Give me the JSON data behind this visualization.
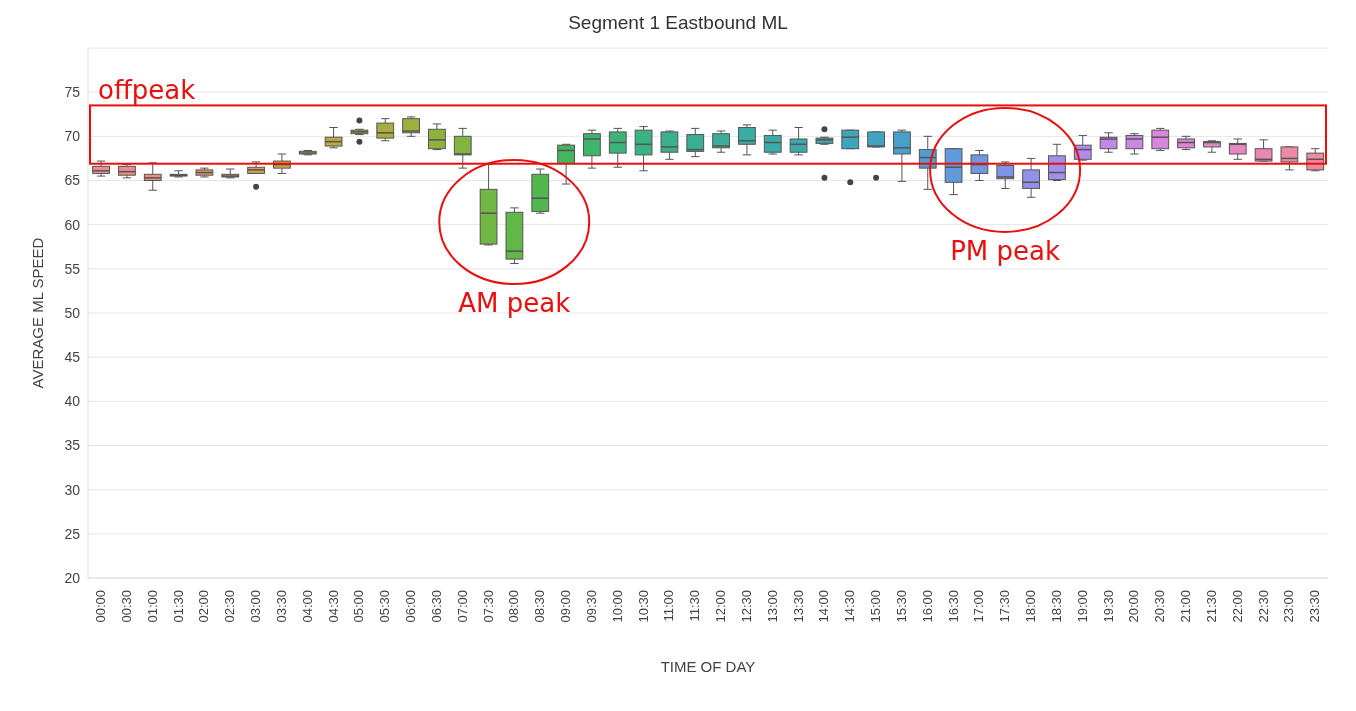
{
  "chart_data": {
    "type": "box",
    "title": "Segment 1 Eastbound ML",
    "xlabel": "TIME OF DAY",
    "ylabel": "AVERAGE ML SPEED",
    "categories": [
      "00:00",
      "00:30",
      "01:00",
      "01:30",
      "02:00",
      "02:30",
      "03:00",
      "03:30",
      "04:00",
      "04:30",
      "05:00",
      "05:30",
      "06:00",
      "06:30",
      "07:00",
      "07:30",
      "08:00",
      "08:30",
      "09:00",
      "09:30",
      "10:00",
      "10:30",
      "11:00",
      "11:30",
      "12:00",
      "12:30",
      "13:00",
      "13:30",
      "14:00",
      "14:30",
      "15:00",
      "15:30",
      "16:00",
      "16:30",
      "17:00",
      "17:30",
      "18:00",
      "18:30",
      "19:00",
      "19:30",
      "20:00",
      "20:30",
      "21:00",
      "21:30",
      "22:00",
      "22:30",
      "23:00",
      "23:30"
    ],
    "boxes": [
      {
        "low": 65.5,
        "q1": 65.8,
        "median": 66.1,
        "q3": 66.6,
        "high": 67.2
      },
      {
        "low": 65.3,
        "q1": 65.6,
        "median": 66.0,
        "q3": 66.6,
        "high": 66.8
      },
      {
        "low": 63.9,
        "q1": 65.0,
        "median": 65.3,
        "q3": 65.7,
        "high": 67.0
      },
      {
        "low": 65.4,
        "q1": 65.5,
        "median": 65.6,
        "q3": 65.7,
        "high": 66.1
      },
      {
        "low": 65.4,
        "q1": 65.6,
        "median": 65.9,
        "q3": 66.2,
        "high": 66.4
      },
      {
        "low": 65.3,
        "q1": 65.4,
        "median": 65.5,
        "q3": 65.7,
        "high": 66.3
      },
      {
        "low": 65.8,
        "q1": 65.8,
        "median": 66.2,
        "q3": 66.5,
        "high": 67.1,
        "outliers": [
          64.3
        ]
      },
      {
        "low": 65.8,
        "q1": 66.4,
        "median": 66.8,
        "q3": 67.2,
        "high": 68.0
      },
      {
        "low": 67.9,
        "q1": 68.0,
        "median": 68.1,
        "q3": 68.3,
        "high": 68.4
      },
      {
        "low": 68.7,
        "q1": 68.9,
        "median": 69.4,
        "q3": 69.9,
        "high": 71.0
      },
      {
        "low": 70.2,
        "q1": 70.3,
        "median": 70.5,
        "q3": 70.7,
        "high": 70.8,
        "outliers": [
          71.8,
          69.4
        ]
      },
      {
        "low": 69.5,
        "q1": 69.8,
        "median": 70.4,
        "q3": 71.5,
        "high": 72.0
      },
      {
        "low": 70.0,
        "q1": 70.4,
        "median": 70.6,
        "q3": 72.0,
        "high": 72.2
      },
      {
        "low": 68.5,
        "q1": 68.6,
        "median": 69.6,
        "q3": 70.8,
        "high": 71.4
      },
      {
        "low": 66.4,
        "q1": 67.9,
        "median": 68.0,
        "q3": 70.0,
        "high": 70.9
      },
      {
        "low": 57.7,
        "q1": 57.8,
        "median": 61.3,
        "q3": 64.0,
        "high": 66.8
      },
      {
        "low": 55.6,
        "q1": 56.1,
        "median": 57.0,
        "q3": 61.4,
        "high": 61.9
      },
      {
        "low": 61.3,
        "q1": 61.5,
        "median": 63.0,
        "q3": 65.7,
        "high": 66.3
      },
      {
        "low": 64.6,
        "q1": 66.9,
        "median": 68.4,
        "q3": 69.0,
        "high": 69.1
      },
      {
        "low": 66.4,
        "q1": 67.8,
        "median": 69.7,
        "q3": 70.3,
        "high": 70.7
      },
      {
        "low": 66.5,
        "q1": 68.1,
        "median": 69.3,
        "q3": 70.5,
        "high": 70.9
      },
      {
        "low": 66.1,
        "q1": 67.9,
        "median": 69.1,
        "q3": 70.7,
        "high": 71.1
      },
      {
        "low": 67.4,
        "q1": 68.2,
        "median": 68.8,
        "q3": 70.5,
        "high": 70.6
      },
      {
        "low": 67.7,
        "q1": 68.3,
        "median": 68.5,
        "q3": 70.2,
        "high": 70.9
      },
      {
        "low": 68.2,
        "q1": 68.7,
        "median": 68.9,
        "q3": 70.3,
        "high": 70.6
      },
      {
        "low": 67.9,
        "q1": 69.1,
        "median": 69.5,
        "q3": 71.0,
        "high": 71.3
      },
      {
        "low": 68.0,
        "q1": 68.2,
        "median": 69.3,
        "q3": 70.1,
        "high": 70.7
      },
      {
        "low": 67.9,
        "q1": 68.2,
        "median": 69.1,
        "q3": 69.7,
        "high": 71.0
      },
      {
        "low": 69.1,
        "q1": 69.2,
        "median": 69.6,
        "q3": 69.8,
        "high": 69.9,
        "outliers": [
          70.8,
          65.3
        ]
      },
      {
        "low": 68.6,
        "q1": 68.6,
        "median": 69.9,
        "q3": 70.7,
        "high": 70.7,
        "outliers": [
          64.8
        ]
      },
      {
        "low": 68.8,
        "q1": 68.8,
        "median": 68.9,
        "q3": 70.5,
        "high": 70.5,
        "outliers": [
          65.3
        ]
      },
      {
        "low": 64.9,
        "q1": 68.0,
        "median": 68.7,
        "q3": 70.5,
        "high": 70.7
      },
      {
        "low": 64.0,
        "q1": 66.4,
        "median": 67.6,
        "q3": 68.5,
        "high": 70.0
      },
      {
        "low": 63.4,
        "q1": 64.8,
        "median": 66.5,
        "q3": 68.6,
        "high": 68.6
      },
      {
        "low": 65.0,
        "q1": 65.8,
        "median": 66.8,
        "q3": 67.9,
        "high": 68.4
      },
      {
        "low": 64.1,
        "q1": 65.2,
        "median": 65.4,
        "q3": 66.7,
        "high": 67.1
      },
      {
        "low": 63.1,
        "q1": 64.1,
        "median": 64.8,
        "q3": 66.2,
        "high": 67.5
      },
      {
        "low": 65.0,
        "q1": 65.1,
        "median": 65.9,
        "q3": 67.8,
        "high": 69.1
      },
      {
        "low": 67.3,
        "q1": 67.4,
        "median": 68.5,
        "q3": 69.0,
        "high": 70.1
      },
      {
        "low": 68.2,
        "q1": 68.6,
        "median": 69.7,
        "q3": 69.9,
        "high": 70.4
      },
      {
        "low": 68.0,
        "q1": 68.6,
        "median": 69.7,
        "q3": 70.1,
        "high": 70.3
      },
      {
        "low": 68.4,
        "q1": 68.6,
        "median": 69.9,
        "q3": 70.7,
        "high": 70.9
      },
      {
        "low": 68.5,
        "q1": 68.7,
        "median": 69.3,
        "q3": 69.7,
        "high": 70.0
      },
      {
        "low": 68.2,
        "q1": 68.8,
        "median": 69.3,
        "q3": 69.4,
        "high": 69.5
      },
      {
        "low": 67.4,
        "q1": 68.0,
        "median": 69.1,
        "q3": 69.2,
        "high": 69.7
      },
      {
        "low": 67.2,
        "q1": 67.2,
        "median": 67.4,
        "q3": 68.6,
        "high": 69.6
      },
      {
        "low": 66.2,
        "q1": 67.1,
        "median": 67.5,
        "q3": 68.8,
        "high": 68.8
      },
      {
        "low": 66.1,
        "q1": 66.2,
        "median": 67.4,
        "q3": 68.1,
        "high": 68.6
      }
    ],
    "colors": [
      "#f08b94",
      "#ed8c8a",
      "#eb8e80",
      "#e89276",
      "#e4966a",
      "#df9a5e",
      "#d99e52",
      "#d2a24a",
      "#c9a544",
      "#bfa840",
      "#b4ab3e",
      "#a8ad3d",
      "#9cb03d",
      "#8fb23e",
      "#81b440",
      "#72b643",
      "#62b747",
      "#52b74f",
      "#44b65e",
      "#3fb56c",
      "#3cb478",
      "#3bb283",
      "#3ab18c",
      "#3aaf94",
      "#3aae9b",
      "#3aada2",
      "#3aaba8",
      "#3ba9ae",
      "#3ca7b5",
      "#3ea5bc",
      "#41a3c3",
      "#47a0cb",
      "#529dd3",
      "#609adb",
      "#7097e2",
      "#8094e7",
      "#9191ea",
      "#a28eeb",
      "#b28bea",
      "#c089e7",
      "#cc87e2",
      "#d686dc",
      "#de86d4",
      "#e386ca",
      "#e787bf",
      "#ea88b3",
      "#ec89a7",
      "#ee8a9c"
    ],
    "ylim": [
      20,
      80
    ],
    "yticks": [
      20,
      25,
      30,
      35,
      40,
      45,
      50,
      55,
      60,
      65,
      70,
      75
    ],
    "grid": "y",
    "legend": false,
    "annotations": [
      "offpeak",
      "AM peak",
      "PM peak"
    ]
  }
}
